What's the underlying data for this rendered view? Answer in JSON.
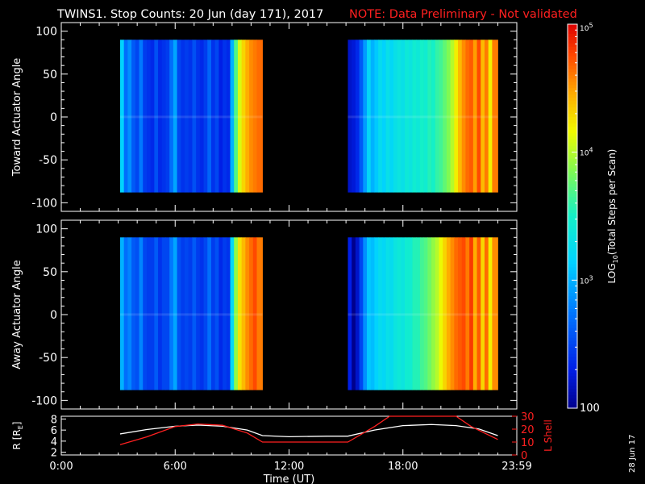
{
  "title": {
    "main": "TWINS1. Stop Counts: 20 Jun (day 171), 2017",
    "note": "NOTE: Data Preliminary - Not validated"
  },
  "colors": {
    "background": "#000000",
    "note": "#ff2020",
    "axes": "#ffffff",
    "r_line": "#ffffff",
    "lshell_line": "#ff2020"
  },
  "date_stamp": "28 Jun 17",
  "chart_data": [
    {
      "type": "heatmap",
      "name": "toward",
      "ylabel": "Toward Actuator Angle",
      "ylim": [
        -110,
        110
      ],
      "yticks": [
        100,
        50,
        0,
        -50,
        -100
      ],
      "ytick_labels": [
        "100",
        "50",
        "0",
        "-50",
        "-100"
      ],
      "xlim": [
        0,
        24
      ],
      "angle_range": [
        -88,
        90
      ],
      "segments": [
        {
          "x_start": 3.1,
          "x_end": 10.6,
          "columns": [
            {
              "x": 3.1,
              "log": 3.15
            },
            {
              "x": 3.3,
              "log": 2.7
            },
            {
              "x": 3.5,
              "log": 2.85
            },
            {
              "x": 3.7,
              "log": 2.6
            },
            {
              "x": 3.9,
              "log": 2.5
            },
            {
              "x": 4.1,
              "log": 2.75
            },
            {
              "x": 4.3,
              "log": 2.45
            },
            {
              "x": 4.5,
              "log": 2.4
            },
            {
              "x": 4.7,
              "log": 2.35
            },
            {
              "x": 4.9,
              "log": 2.55
            },
            {
              "x": 5.1,
              "log": 2.35
            },
            {
              "x": 5.3,
              "log": 2.4
            },
            {
              "x": 5.5,
              "log": 2.45
            },
            {
              "x": 5.7,
              "log": 2.7
            },
            {
              "x": 5.9,
              "log": 2.95
            },
            {
              "x": 6.1,
              "log": 2.5
            },
            {
              "x": 6.3,
              "log": 2.4
            },
            {
              "x": 6.5,
              "log": 2.45
            },
            {
              "x": 6.7,
              "log": 2.4
            },
            {
              "x": 6.9,
              "log": 2.55
            },
            {
              "x": 7.1,
              "log": 2.4
            },
            {
              "x": 7.3,
              "log": 2.35
            },
            {
              "x": 7.5,
              "log": 2.45
            },
            {
              "x": 7.7,
              "log": 2.65
            },
            {
              "x": 7.9,
              "log": 2.4
            },
            {
              "x": 8.1,
              "log": 2.5
            },
            {
              "x": 8.3,
              "log": 2.3
            },
            {
              "x": 8.5,
              "log": 2.4
            },
            {
              "x": 8.7,
              "log": 2.35
            },
            {
              "x": 8.9,
              "log": 3.0
            },
            {
              "x": 9.1,
              "log": 3.7
            },
            {
              "x": 9.3,
              "log": 4.1
            },
            {
              "x": 9.5,
              "log": 4.3
            },
            {
              "x": 9.7,
              "log": 4.45
            },
            {
              "x": 9.9,
              "log": 4.55
            },
            {
              "x": 10.1,
              "log": 4.6
            },
            {
              "x": 10.3,
              "log": 4.65
            }
          ]
        },
        {
          "x_start": 15.1,
          "x_end": 23.0,
          "columns": [
            {
              "x": 15.1,
              "log": 2.2
            },
            {
              "x": 15.3,
              "log": 2.25
            },
            {
              "x": 15.5,
              "log": 2.35
            },
            {
              "x": 15.7,
              "log": 2.6
            },
            {
              "x": 15.9,
              "log": 2.9
            },
            {
              "x": 16.1,
              "log": 3.2
            },
            {
              "x": 16.3,
              "log": 3.0
            },
            {
              "x": 16.5,
              "log": 3.1
            },
            {
              "x": 16.7,
              "log": 3.25
            },
            {
              "x": 16.9,
              "log": 3.15
            },
            {
              "x": 17.1,
              "log": 3.3
            },
            {
              "x": 17.3,
              "log": 3.2
            },
            {
              "x": 17.5,
              "log": 3.3
            },
            {
              "x": 17.7,
              "log": 3.35
            },
            {
              "x": 17.9,
              "log": 3.3
            },
            {
              "x": 18.1,
              "log": 3.4
            },
            {
              "x": 18.3,
              "log": 3.35
            },
            {
              "x": 18.5,
              "log": 3.45
            },
            {
              "x": 18.7,
              "log": 3.4
            },
            {
              "x": 18.9,
              "log": 3.5
            },
            {
              "x": 19.1,
              "log": 3.45
            },
            {
              "x": 19.3,
              "log": 3.55
            },
            {
              "x": 19.5,
              "log": 3.5
            },
            {
              "x": 19.7,
              "log": 3.6
            },
            {
              "x": 19.9,
              "log": 3.65
            },
            {
              "x": 20.1,
              "log": 3.75
            },
            {
              "x": 20.3,
              "log": 3.85
            },
            {
              "x": 20.5,
              "log": 4.0
            },
            {
              "x": 20.7,
              "log": 4.2
            },
            {
              "x": 20.9,
              "log": 4.4
            },
            {
              "x": 21.1,
              "log": 4.55
            },
            {
              "x": 21.3,
              "log": 4.65
            },
            {
              "x": 21.5,
              "log": 4.7
            },
            {
              "x": 21.7,
              "log": 4.5
            },
            {
              "x": 21.9,
              "log": 4.75
            },
            {
              "x": 22.1,
              "log": 4.4
            },
            {
              "x": 22.3,
              "log": 4.6
            },
            {
              "x": 22.5,
              "log": 4.2
            },
            {
              "x": 22.7,
              "log": 4.6
            }
          ]
        }
      ]
    },
    {
      "type": "heatmap",
      "name": "away",
      "ylabel": "Away Actuator Angle",
      "ylim": [
        -110,
        110
      ],
      "yticks": [
        100,
        50,
        0,
        -50,
        -100
      ],
      "ytick_labels": [
        "100",
        "50",
        "0",
        "-50",
        "-100"
      ],
      "xlim": [
        0,
        24
      ],
      "angle_range": [
        -88,
        90
      ],
      "segments": [
        {
          "x_start": 3.1,
          "x_end": 10.6,
          "columns": [
            {
              "x": 3.1,
              "log": 3.0
            },
            {
              "x": 3.3,
              "log": 2.7
            },
            {
              "x": 3.5,
              "log": 2.8
            },
            {
              "x": 3.7,
              "log": 2.6
            },
            {
              "x": 3.9,
              "log": 2.55
            },
            {
              "x": 4.1,
              "log": 2.8
            },
            {
              "x": 4.3,
              "log": 2.5
            },
            {
              "x": 4.5,
              "log": 2.45
            },
            {
              "x": 4.7,
              "log": 2.45
            },
            {
              "x": 4.9,
              "log": 2.6
            },
            {
              "x": 5.1,
              "log": 2.4
            },
            {
              "x": 5.3,
              "log": 2.5
            },
            {
              "x": 5.5,
              "log": 2.5
            },
            {
              "x": 5.7,
              "log": 2.75
            },
            {
              "x": 5.9,
              "log": 2.95
            },
            {
              "x": 6.1,
              "log": 2.55
            },
            {
              "x": 6.3,
              "log": 2.45
            },
            {
              "x": 6.5,
              "log": 2.5
            },
            {
              "x": 6.7,
              "log": 2.45
            },
            {
              "x": 6.9,
              "log": 2.6
            },
            {
              "x": 7.1,
              "log": 2.45
            },
            {
              "x": 7.3,
              "log": 2.4
            },
            {
              "x": 7.5,
              "log": 2.5
            },
            {
              "x": 7.7,
              "log": 2.7
            },
            {
              "x": 7.9,
              "log": 2.45
            },
            {
              "x": 8.1,
              "log": 2.55
            },
            {
              "x": 8.3,
              "log": 2.35
            },
            {
              "x": 8.5,
              "log": 2.45
            },
            {
              "x": 8.7,
              "log": 2.4
            },
            {
              "x": 8.9,
              "log": 3.2
            },
            {
              "x": 9.1,
              "log": 3.9
            },
            {
              "x": 9.3,
              "log": 4.25
            },
            {
              "x": 9.5,
              "log": 4.4
            },
            {
              "x": 9.7,
              "log": 4.55
            },
            {
              "x": 9.9,
              "log": 4.65
            },
            {
              "x": 10.1,
              "log": 4.75
            },
            {
              "x": 10.3,
              "log": 4.6
            }
          ]
        },
        {
          "x_start": 15.1,
          "x_end": 23.0,
          "columns": [
            {
              "x": 15.1,
              "log": 2.3
            },
            {
              "x": 15.3,
              "log": 2.0
            },
            {
              "x": 15.5,
              "log": 2.2
            },
            {
              "x": 15.7,
              "log": 2.5
            },
            {
              "x": 15.9,
              "log": 2.85
            },
            {
              "x": 16.1,
              "log": 3.1
            },
            {
              "x": 16.3,
              "log": 3.05
            },
            {
              "x": 16.5,
              "log": 3.15
            },
            {
              "x": 16.7,
              "log": 3.25
            },
            {
              "x": 16.9,
              "log": 3.2
            },
            {
              "x": 17.1,
              "log": 3.3
            },
            {
              "x": 17.3,
              "log": 3.25
            },
            {
              "x": 17.5,
              "log": 3.35
            },
            {
              "x": 17.7,
              "log": 3.4
            },
            {
              "x": 17.9,
              "log": 3.35
            },
            {
              "x": 18.1,
              "log": 3.45
            },
            {
              "x": 18.3,
              "log": 3.45
            },
            {
              "x": 18.5,
              "log": 3.55
            },
            {
              "x": 18.7,
              "log": 3.55
            },
            {
              "x": 18.9,
              "log": 3.65
            },
            {
              "x": 19.1,
              "log": 3.7
            },
            {
              "x": 19.3,
              "log": 3.8
            },
            {
              "x": 19.5,
              "log": 3.9
            },
            {
              "x": 19.7,
              "log": 4.0
            },
            {
              "x": 19.9,
              "log": 4.15
            },
            {
              "x": 20.1,
              "log": 4.3
            },
            {
              "x": 20.3,
              "log": 4.45
            },
            {
              "x": 20.5,
              "log": 4.55
            },
            {
              "x": 20.7,
              "log": 4.65
            },
            {
              "x": 20.9,
              "log": 4.7
            },
            {
              "x": 21.1,
              "log": 4.75
            },
            {
              "x": 21.3,
              "log": 4.6
            },
            {
              "x": 21.5,
              "log": 4.8
            },
            {
              "x": 21.7,
              "log": 4.45
            },
            {
              "x": 21.9,
              "log": 4.7
            },
            {
              "x": 22.1,
              "log": 4.3
            },
            {
              "x": 22.3,
              "log": 4.65
            },
            {
              "x": 22.5,
              "log": 4.2
            },
            {
              "x": 22.7,
              "log": 4.55
            }
          ]
        }
      ]
    },
    {
      "type": "line",
      "name": "orbit",
      "xlabel": "Time (UT)",
      "xlim": [
        0,
        24
      ],
      "xticks": [
        0,
        6,
        12,
        18,
        24
      ],
      "xtick_labels": [
        "0:00",
        "6:00",
        "12:00",
        "18:00",
        "23:59"
      ],
      "left_axis": {
        "label": "R [R",
        "label_sub": "E",
        "label_end": "]",
        "ylim": [
          1.5,
          8.5
        ],
        "yticks": [
          2,
          4,
          6,
          8
        ],
        "ytick_labels": [
          "2",
          "4",
          "6",
          "8"
        ]
      },
      "right_axis": {
        "label": "L Shell",
        "ylim": [
          0,
          30
        ],
        "yticks": [
          0,
          10,
          20,
          30
        ],
        "ytick_labels": [
          "0",
          "10",
          "20",
          "30"
        ]
      },
      "series": [
        {
          "name": "R",
          "x": [
            3.1,
            4.5,
            6.0,
            7.2,
            8.5,
            9.8,
            10.6,
            12.0,
            14.0,
            15.1,
            16.5,
            18.0,
            19.5,
            20.8,
            22.0,
            23.0
          ],
          "values": [
            5.3,
            6.1,
            6.7,
            6.9,
            6.7,
            6.0,
            5.0,
            4.8,
            4.9,
            4.9,
            6.0,
            6.8,
            7.0,
            6.8,
            6.2,
            5.0
          ]
        },
        {
          "name": "L Shell",
          "x": [
            3.1,
            4.5,
            6.0,
            7.2,
            8.5,
            9.8,
            10.6,
            12.0,
            14.0,
            15.1,
            16.5,
            17.3,
            20.8,
            21.6,
            23.0
          ],
          "values": [
            8,
            14,
            22,
            24,
            23,
            17,
            10,
            10,
            10,
            10,
            22,
            30,
            30,
            22,
            12
          ]
        }
      ]
    },
    {
      "type": "heatmap",
      "name": "colorbar",
      "label": "LOG",
      "label_sub": "10",
      "label_rest": "(Total Steps per Scan)",
      "range_log": [
        2,
        5
      ],
      "ticks": [
        {
          "log": 5,
          "base": "10",
          "exp": "5"
        },
        {
          "log": 4,
          "base": "10",
          "exp": "4"
        },
        {
          "log": 3,
          "base": "10",
          "exp": "3"
        },
        {
          "log": 2,
          "base": "100",
          "exp": ""
        }
      ]
    }
  ]
}
